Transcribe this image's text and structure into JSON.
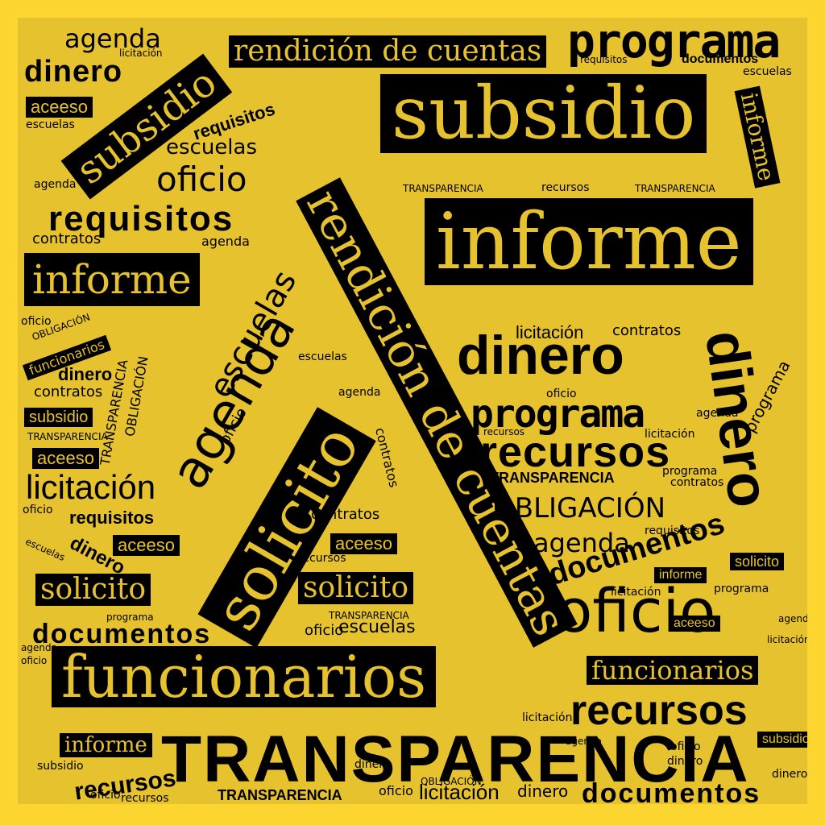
{
  "colors": {
    "outer_background": "#fcd530",
    "cloud_background": "#e7c22f",
    "text": "#000000",
    "boxed_text": "#e7c22f",
    "box": "#000000"
  },
  "words": {
    "transparencia": "TRANSPARENCIA",
    "funcionarios": "funcionarios",
    "rendicion_de_cuentas": "rendición de cuentas",
    "subsidio": "subsidio",
    "informe": "informe",
    "dinero": "dinero",
    "programa": "programa",
    "recursos": "recursos",
    "oficio": "oficio",
    "solicito": "solicito",
    "agenda": "agenda",
    "escuelas": "escuelas",
    "requisitos": "requisitos",
    "licitacion": "licitación",
    "obligacion": "OBLIGACIÓN",
    "documentos": "documentos",
    "contratos": "contratos",
    "aceeso": "aceeso"
  }
}
